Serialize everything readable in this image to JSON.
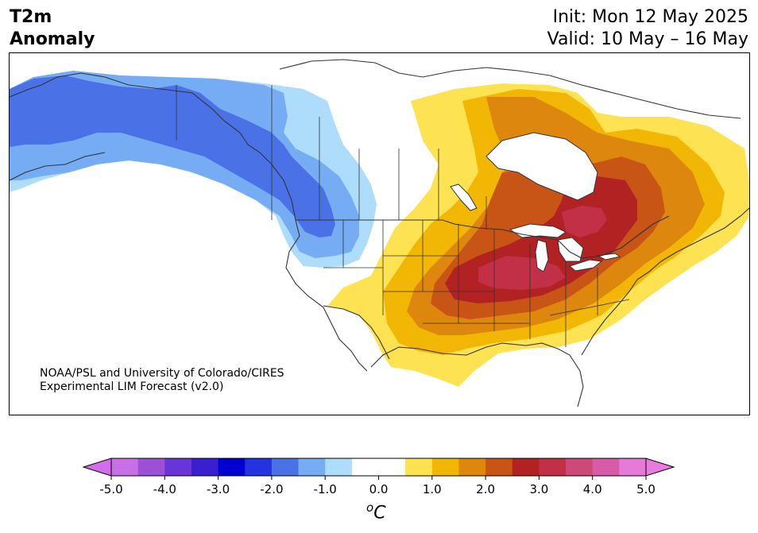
{
  "title": {
    "left_line1": "T2m",
    "left_line2": "Anomaly",
    "init": "Init: Mon 12 May 2025",
    "valid": "Valid: 10 May – 16 May"
  },
  "credit": {
    "line1": "NOAA/PSL and University of Colorado/CIRES",
    "line2": "Experimental LIM Forecast (v2.0)"
  },
  "colorbar": {
    "unit_symbol": "o",
    "unit_letter": "C",
    "tick_labels": [
      "-5.0",
      "-4.0",
      "-3.0",
      "-2.0",
      "-1.0",
      "0.0",
      "1.0",
      "2.0",
      "3.0",
      "4.0",
      "5.0"
    ],
    "min": -5.0,
    "max": 5.0,
    "step": 0.5,
    "colors": [
      "#c86ee6",
      "#9b50d7",
      "#6a35d8",
      "#3a1fd0",
      "#0000d0",
      "#2233df",
      "#4a72e6",
      "#75acf4",
      "#aedcfb",
      "#ffffff",
      "#ffffff",
      "#fde251",
      "#f2b705",
      "#de870f",
      "#c85516",
      "#b22222",
      "#c23048",
      "#cc4978",
      "#d65ca8",
      "#e57ad8"
    ],
    "under_color": "#d46ee8",
    "over_color": "#e97ae0"
  },
  "anomaly_colors": {
    "cold_2": "#4a72e6",
    "cold_1_5": "#75acf4",
    "cold_1": "#aedcfb",
    "warm_1": "#fde251",
    "warm_1_5": "#f2b705",
    "warm_2": "#de870f",
    "warm_2_5": "#c85516",
    "warm_3": "#b22222",
    "warm_3_5": "#c23048"
  }
}
